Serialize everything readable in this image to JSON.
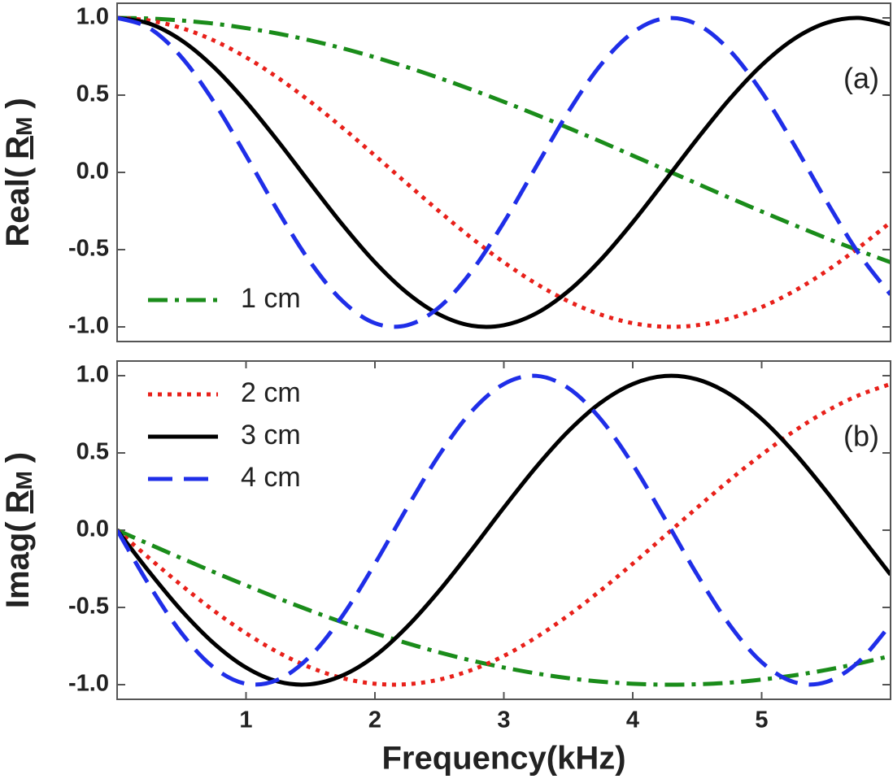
{
  "chart_data": [
    {
      "type": "line",
      "ylabel": [
        "Real(",
        "R",
        "M",
        ")"
      ],
      "annotation": "(a)",
      "legend": "lower left",
      "x": [
        0,
        0.25,
        0.5,
        0.75,
        1,
        1.25,
        1.5,
        1.75,
        2,
        2.25,
        2.5,
        2.75,
        3,
        3.25,
        3.5,
        3.75,
        4,
        4.25,
        4.5,
        4.75,
        5,
        5.25,
        5.5,
        5.75,
        6
      ],
      "xlim": [
        0,
        6
      ],
      "ylim": [
        -1.1,
        1.1
      ],
      "yticks": [
        {
          "value": -1,
          "label": "-1.0"
        },
        -0.5,
        {
          "value": 0,
          "label": "0.0"
        },
        0.5,
        {
          "value": 1,
          "label": "1.0"
        }
      ],
      "series": [
        {
          "name": "1 cm",
          "color": "#1a8c1a",
          "linestyle": "dashdot",
          "values": [
            1,
            0.996,
            0.983,
            0.963,
            0.934,
            0.898,
            0.854,
            0.803,
            0.745,
            0.681,
            0.611,
            0.536,
            0.457,
            0.374,
            0.288,
            0.2,
            0.109,
            0.018,
            -0.073,
            -0.164,
            -0.253,
            -0.34,
            -0.425,
            -0.505,
            -0.582
          ]
        },
        {
          "color": "#e8201a",
          "linestyle": "dotted",
          "values": [
            1,
            0.983,
            0.934,
            0.854,
            0.745,
            0.611,
            0.457,
            0.288,
            0.109,
            -0.073,
            -0.253,
            -0.425,
            -0.582,
            -0.72,
            -0.834,
            -0.92,
            -0.976,
            -0.999,
            -0.989,
            -0.946,
            -0.872,
            -0.769,
            -0.64,
            -0.489,
            -0.323
          ]
        },
        {
          "color": "#000000",
          "linestyle": "solid",
          "values": [
            1,
            0.963,
            0.854,
            0.681,
            0.457,
            0.2,
            -0.073,
            -0.34,
            -0.582,
            -0.78,
            -0.92,
            -0.992,
            -0.989,
            -0.913,
            -0.769,
            -0.567,
            -0.323,
            -0.055,
            0.217,
            0.473,
            0.694,
            0.863,
            0.967,
            1,
            0.958
          ]
        },
        {
          "color": "#1f2ee8",
          "linestyle": "dashed",
          "values": [
            1,
            0.934,
            0.745,
            0.457,
            0.109,
            -0.253,
            -0.582,
            -0.834,
            -0.976,
            -0.989,
            -0.872,
            -0.64,
            -0.323,
            0.036,
            0.391,
            0.694,
            0.905,
            0.997,
            0.958,
            0.791,
            0.521,
            0.182,
            -0.182,
            -0.521,
            -0.791
          ]
        }
      ]
    },
    {
      "type": "line",
      "ylabel": [
        "Imag(",
        "R",
        "M",
        ")"
      ],
      "xlabel": "Frequency(kHz)",
      "annotation": "(b)",
      "legend": "upper left",
      "x": [
        0,
        0.25,
        0.5,
        0.75,
        1,
        1.25,
        1.5,
        1.75,
        2,
        2.25,
        2.5,
        2.75,
        3,
        3.25,
        3.5,
        3.75,
        4,
        4.25,
        4.5,
        4.75,
        5,
        5.25,
        5.5,
        5.75,
        6
      ],
      "xlim": [
        0,
        6
      ],
      "xticks": [
        1,
        2,
        3,
        4,
        5
      ],
      "ylim": [
        -1.1,
        1.1
      ],
      "yticks": [
        {
          "value": -1,
          "label": "-1.0"
        },
        -0.5,
        {
          "value": 0,
          "label": "0.0"
        },
        0.5,
        {
          "value": 1,
          "label": "1.0"
        }
      ],
      "series": [
        {
          "color": "#1a8c1a",
          "linestyle": "dashdot",
          "values": [
            0,
            -0.091,
            -0.182,
            -0.271,
            -0.357,
            -0.441,
            -0.521,
            -0.597,
            -0.667,
            -0.732,
            -0.791,
            -0.844,
            -0.889,
            -0.927,
            -0.958,
            -0.98,
            -0.994,
            -1,
            -0.997,
            -0.987,
            -0.967,
            -0.94,
            -0.905,
            -0.863,
            -0.814
          ]
        },
        {
          "name": "2 cm",
          "color": "#e8201a",
          "linestyle": "dotted",
          "values": [
            0,
            -0.182,
            -0.357,
            -0.521,
            -0.667,
            -0.791,
            -0.889,
            -0.958,
            -0.994,
            -0.997,
            -0.967,
            -0.905,
            -0.814,
            -0.694,
            -0.552,
            -0.391,
            -0.217,
            -0.036,
            0.146,
            0.323,
            0.489,
            0.64,
            0.769,
            0.872,
            0.946
          ]
        },
        {
          "name": "3 cm",
          "color": "#000000",
          "linestyle": "solid",
          "values": [
            0,
            -0.271,
            -0.521,
            -0.732,
            -0.889,
            -0.98,
            -0.997,
            -0.94,
            -0.814,
            -0.625,
            -0.391,
            -0.128,
            0.146,
            0.408,
            0.64,
            0.824,
            0.946,
            0.998,
            0.976,
            0.881,
            0.72,
            0.505,
            0.253,
            -0.018,
            -0.288
          ]
        },
        {
          "name": "4 cm",
          "color": "#1f2ee8",
          "linestyle": "dashed",
          "values": [
            0,
            -0.357,
            -0.667,
            -0.889,
            -0.994,
            -0.967,
            -0.814,
            -0.552,
            -0.217,
            0.146,
            0.489,
            0.769,
            0.946,
            0.999,
            0.92,
            0.72,
            0.425,
            0.073,
            -0.288,
            -0.611,
            -0.854,
            -0.983,
            -0.983,
            -0.854,
            -0.611
          ]
        }
      ]
    }
  ]
}
